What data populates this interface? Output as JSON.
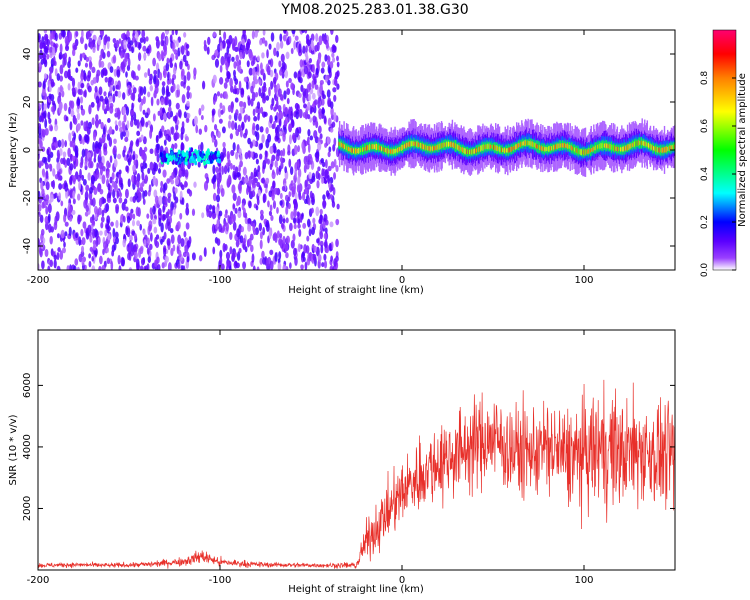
{
  "figure": {
    "title": "YM08.2025.283.01.38.G30"
  },
  "chart_data": [
    {
      "type": "heatmap",
      "xlabel": "Height of straight line (km)",
      "ylabel": "Frequency (Hz)",
      "xlim": [
        -200,
        150
      ],
      "ylim": [
        -50,
        50
      ],
      "xticks": [
        -200,
        -100,
        0,
        100
      ],
      "yticks": [
        -40,
        -20,
        0,
        20,
        40
      ],
      "colorbar": {
        "label": "Normalized spectral amplitude",
        "range": [
          0,
          1
        ],
        "ticks": [
          0.0,
          0.2,
          0.4,
          0.6,
          0.8
        ],
        "colors": [
          "#ffffff",
          "#7b00ff",
          "#0000ff",
          "#00ffff",
          "#00ff00",
          "#ffff00",
          "#ff8000",
          "#ff0000",
          "#ff0080"
        ]
      },
      "regions": [
        {
          "x_from": -200,
          "x_to": -35,
          "description": "broadband noise",
          "amplitude": 0.12
        },
        {
          "x_from": -133,
          "x_to": -100,
          "center_hz": -3,
          "amplitude": 0.3
        },
        {
          "x_from": -35,
          "x_to": 150,
          "center_hz": 1,
          "amplitude": 0.75
        }
      ]
    },
    {
      "type": "line",
      "xlabel": "Height of straight line (km)",
      "ylabel": "SNR (10 * v/v)",
      "xlim": [
        -200,
        150
      ],
      "ylim": [
        0,
        7800
      ],
      "xticks": [
        -200,
        -100,
        0,
        100
      ],
      "yticks": [
        2000,
        4000,
        6000
      ],
      "series": [
        {
          "name": "SNR",
          "color": "#e8302a",
          "x": [
            -200,
            -180,
            -160,
            -140,
            -120,
            -110,
            -100,
            -80,
            -60,
            -40,
            -25,
            -20,
            -10,
            0,
            10,
            20,
            30,
            40,
            50,
            60,
            70,
            80,
            90,
            100,
            110,
            120,
            130,
            140,
            150
          ],
          "y": [
            150,
            170,
            150,
            180,
            280,
            450,
            250,
            180,
            160,
            150,
            150,
            900,
            1700,
            2500,
            3100,
            3500,
            3800,
            4100,
            4300,
            3900,
            3800,
            4000,
            3700,
            3700,
            4000,
            3800,
            3900,
            3800,
            3700
          ],
          "spread": [
            100,
            100,
            100,
            120,
            200,
            300,
            200,
            120,
            100,
            100,
            150,
            800,
            1200,
            1400,
            1600,
            1700,
            1800,
            1900,
            2000,
            2000,
            1900,
            2000,
            2100,
            2300,
            2600,
            2400,
            2300,
            2300,
            2200
          ]
        }
      ]
    }
  ]
}
